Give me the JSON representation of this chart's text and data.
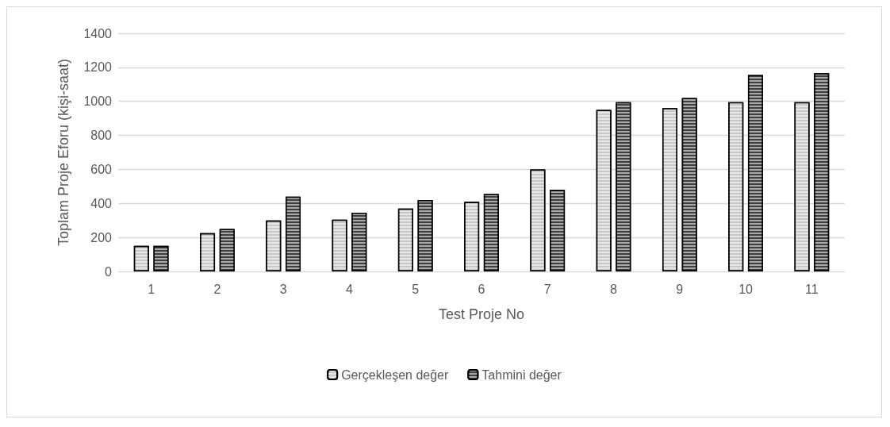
{
  "chart_data": {
    "type": "bar",
    "xlabel": "Test Proje No",
    "ylabel": "Toplam Proje Eforu (kişi-saat)",
    "categories": [
      "1",
      "2",
      "3",
      "4",
      "5",
      "6",
      "7",
      "8",
      "9",
      "10",
      "11"
    ],
    "series": [
      {
        "name": "Gerçekleşen değer",
        "color": "#c8c8c8",
        "values": [
          150,
          225,
          300,
          305,
          370,
          410,
          600,
          950,
          960,
          995,
          995
        ]
      },
      {
        "name": "Tahmini değer",
        "color": "#404040",
        "values": [
          150,
          250,
          440,
          345,
          420,
          455,
          480,
          995,
          1020,
          1155,
          1165
        ]
      }
    ],
    "ylim": [
      0,
      1400
    ],
    "yticks": [
      0,
      200,
      400,
      600,
      800,
      1000,
      1200,
      1400
    ],
    "grid": "y",
    "legend": "bottom"
  }
}
